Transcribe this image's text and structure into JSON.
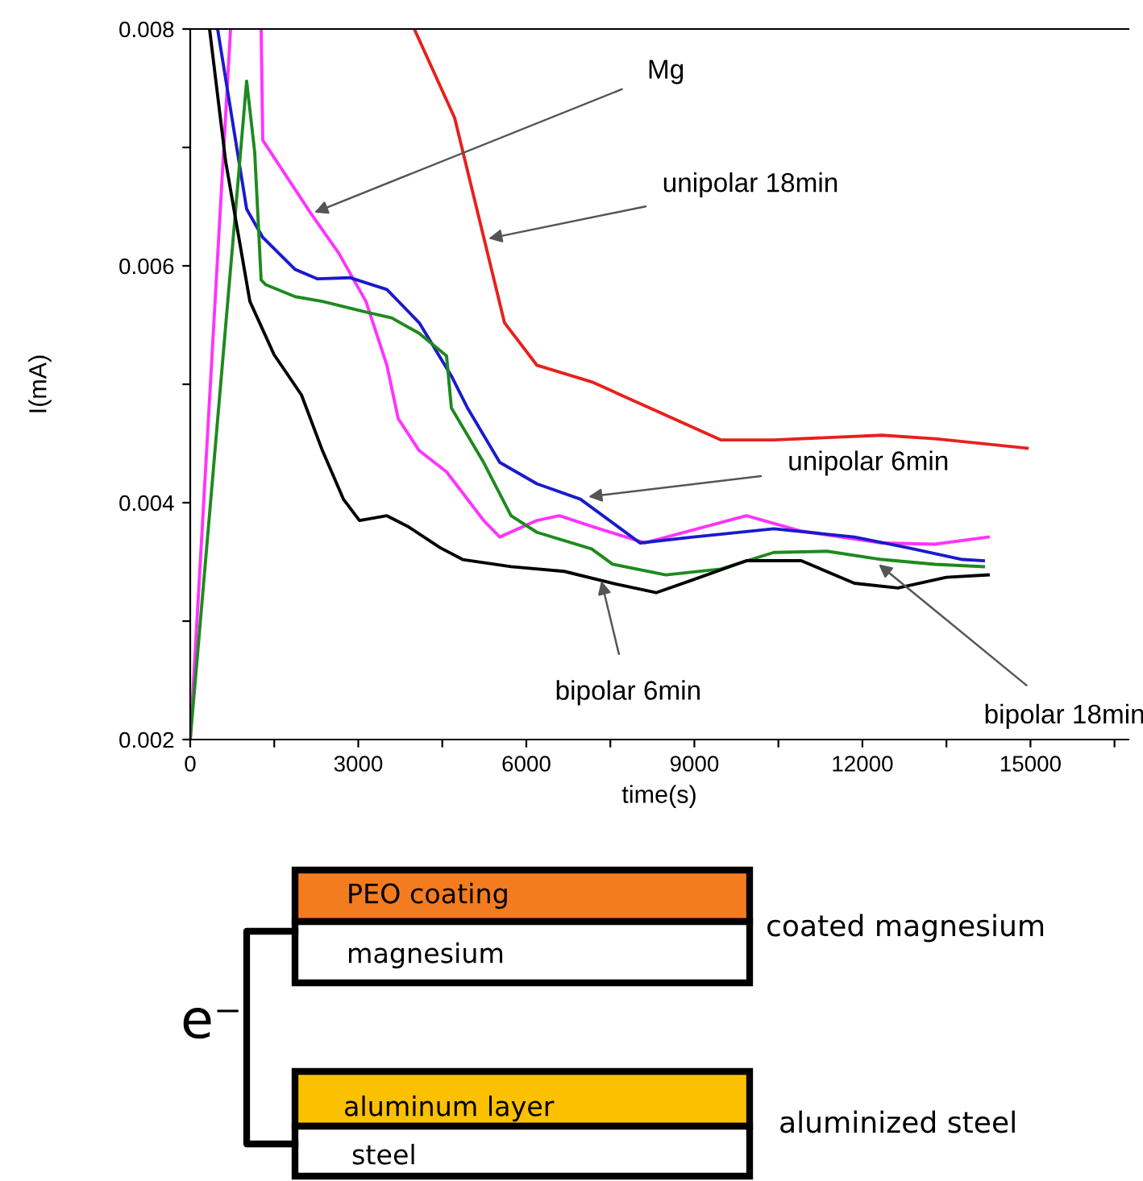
{
  "chart_data": {
    "type": "line",
    "xlabel": "time(s)",
    "ylabel": "I(mA)",
    "xlim": [
      0,
      16750
    ],
    "ylim": [
      0.002,
      0.008
    ],
    "xticks": [
      0,
      {
        "value": 1500,
        "label": null
      },
      3000,
      {
        "value": 4500,
        "label": null
      },
      6000,
      {
        "value": 7500,
        "label": null
      },
      9000,
      {
        "value": 10500,
        "label": null
      },
      12000,
      {
        "value": 13500,
        "label": null
      },
      15000,
      {
        "value": 16500,
        "label": null
      }
    ],
    "yticks": [
      0.002,
      {
        "value": 0.003,
        "label": null
      },
      0.004,
      {
        "value": 0.005,
        "label": null
      },
      0.006,
      {
        "value": 0.007,
        "label": null
      },
      0.008
    ],
    "grid": false,
    "legend": false,
    "marker": "none",
    "line_style": "solid",
    "series": [
      {
        "color": "#e8201c",
        "x": [
          4000,
          4720,
          5240,
          5610,
          6190,
          7170,
          8110,
          9470,
          10420,
          12350,
          13300,
          14940
        ],
        "values": [
          0.008,
          0.00725,
          0.00624,
          0.00552,
          0.00516,
          0.00502,
          0.00482,
          0.00453,
          0.00453,
          0.00457,
          0.00454,
          0.00446
        ]
      },
      {
        "color": "#ff33ff",
        "x": [
          0,
          720,
          1000,
          1266,
          1295,
          2158,
          2648,
          3137,
          3511,
          3713,
          4087,
          4576,
          5238,
          5526,
          6188,
          6590,
          7166,
          8116,
          9929,
          10908,
          12348,
          13296,
          14246
        ],
        "values": [
          0.002,
          0.008,
          null,
          0.008,
          0.00706,
          0.00644,
          0.00611,
          0.0057,
          0.00516,
          0.00471,
          0.00444,
          0.00426,
          0.00385,
          0.00371,
          0.00385,
          0.00389,
          0.0038,
          0.00366,
          0.00389,
          0.00376,
          0.00366,
          0.00365,
          0.00371
        ]
      },
      {
        "color": "#1a1acc",
        "x": [
          489,
          1007,
          1295,
          1871,
          2274,
          2849,
          3511,
          4087,
          4662,
          4950,
          5526,
          6188,
          6965,
          7627,
          8030,
          8979,
          10418,
          11857,
          12807,
          13786,
          14160
        ],
        "values": [
          0.008,
          0.00648,
          0.00624,
          0.00597,
          0.00589,
          0.0059,
          0.0058,
          0.00552,
          0.00507,
          0.0048,
          0.00434,
          0.00416,
          0.00403,
          0.0038,
          0.00366,
          0.00371,
          0.00378,
          0.00371,
          0.00362,
          0.00352,
          0.00351
        ]
      },
      {
        "color": "#1e8a1e",
        "x": [
          0,
          1007,
          1151,
          1266,
          1353,
          1871,
          2360,
          3137,
          3598,
          4087,
          4576,
          4662,
          5238,
          5727,
          6188,
          7166,
          7541,
          8490,
          9469,
          10418,
          11368,
          12347,
          13296,
          14160
        ],
        "values": [
          0.002,
          0.00756,
          0.00696,
          0.00588,
          0.00584,
          0.00574,
          0.0057,
          0.00561,
          0.00556,
          0.00543,
          0.00524,
          0.0048,
          0.00434,
          0.00389,
          0.00375,
          0.00361,
          0.00348,
          0.00339,
          0.00344,
          0.00358,
          0.00359,
          0.00352,
          0.00348,
          0.00346
        ]
      },
      {
        "color": "#000000",
        "x": [
          345,
          633,
          1065,
          1497,
          1986,
          2360,
          2734,
          3022,
          3511,
          3885,
          4461,
          4864,
          5727,
          6677,
          7627,
          8317,
          8979,
          9929,
          10908,
          11857,
          12634,
          13498,
          14246
        ],
        "values": [
          0.008,
          0.00688,
          0.0057,
          0.00525,
          0.00491,
          0.00444,
          0.00403,
          0.00385,
          0.00389,
          0.0038,
          0.00362,
          0.00352,
          0.00346,
          0.00342,
          0.00331,
          0.00324,
          0.00335,
          0.00351,
          0.00351,
          0.00332,
          0.00328,
          0.00337,
          0.00339
        ]
      }
    ],
    "annotations": [
      {
        "text": "Mg",
        "x": 2216,
        "y": 0.00645
      },
      {
        "text": "unipolar 18min",
        "x": 5324,
        "y": 0.00623
      },
      {
        "text": "unipolar 6min",
        "x": 7109,
        "y": 0.00405
      },
      {
        "text": "bipolar 6min",
        "x": 7339,
        "y": 0.00334
      },
      {
        "text": "bipolar 18min",
        "x": 12290,
        "y": 0.00348
      },
      "PEO coating",
      "magnesium",
      "coated magnesium",
      "e⁻",
      "aluminum layer",
      "steel",
      "aluminized steel"
    ]
  }
}
